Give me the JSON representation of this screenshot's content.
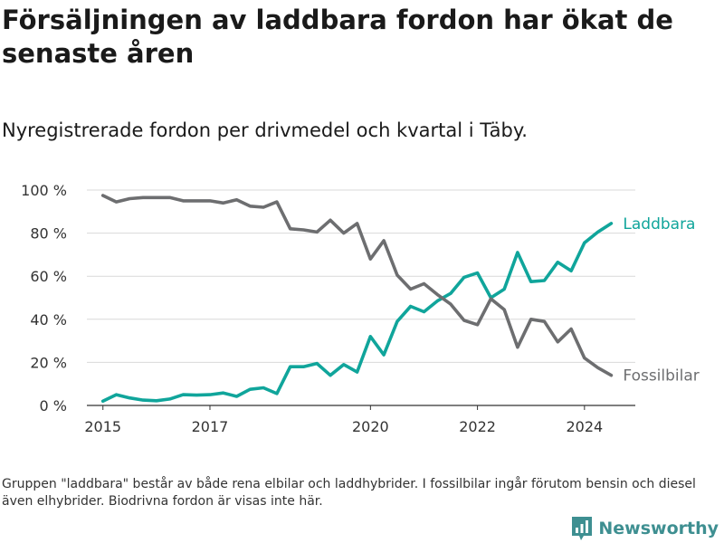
{
  "header": {
    "title": "Försäljningen av laddbara fordon har ökat de senaste åren",
    "subtitle": "Nyregistrerade fordon per drivmedel och kvartal i Täby."
  },
  "footer": {
    "note": "Gruppen \"laddbara\" består av både rena elbilar och laddhybrider. I fossilbilar ingår förutom bensin och diesel även elhybrider. Biodrivna fordon är visas inte här.",
    "brand": "Newsworthy"
  },
  "chart_data": {
    "type": "line",
    "title": "Försäljningen av laddbara fordon har ökat de senaste åren",
    "subtitle": "Nyregistrerade fordon per drivmedel och kvartal i Täby.",
    "xlabel": "",
    "ylabel": "",
    "x_start": 2015.0,
    "x_step": 0.25,
    "xlim": [
      2014.7,
      2024.95
    ],
    "ylim": [
      0,
      100
    ],
    "x_ticks": [
      2015,
      2017,
      2020,
      2022,
      2024
    ],
    "x_tick_labels": [
      "2015",
      "2017",
      "2020",
      "2022",
      "2024"
    ],
    "y_ticks": [
      0,
      20,
      40,
      60,
      80,
      100
    ],
    "y_tick_labels": [
      "0 %",
      "20 %",
      "40 %",
      "60 %",
      "80 %",
      "100 %"
    ],
    "grid": true,
    "series": [
      {
        "name": "Laddbara",
        "color": "#10a59b",
        "values": [
          2,
          5,
          3.5,
          2.5,
          2.2,
          3,
          5,
          4.8,
          5,
          5.8,
          4.2,
          7.5,
          8.2,
          5.5,
          18,
          18,
          19.5,
          14,
          19,
          15.5,
          32,
          23.5,
          39,
          46,
          43.5,
          48.5,
          52,
          59.5,
          61.5,
          50,
          54,
          71,
          57.5,
          58,
          66.5,
          62.5,
          75.5,
          80.5,
          84.5
        ]
      },
      {
        "name": "Fossilbilar",
        "color": "#6d6e70",
        "values": [
          97.5,
          94.5,
          96,
          96.5,
          96.5,
          96.5,
          95,
          95,
          95,
          94,
          95.5,
          92.5,
          92,
          94.5,
          82,
          81.5,
          80.5,
          86,
          80,
          84.5,
          68,
          76.5,
          60.5,
          54,
          56.5,
          51.5,
          47,
          39.5,
          37.5,
          49.5,
          44.5,
          27,
          40,
          39,
          29.5,
          35.5,
          22,
          17.5,
          14
        ]
      }
    ]
  }
}
